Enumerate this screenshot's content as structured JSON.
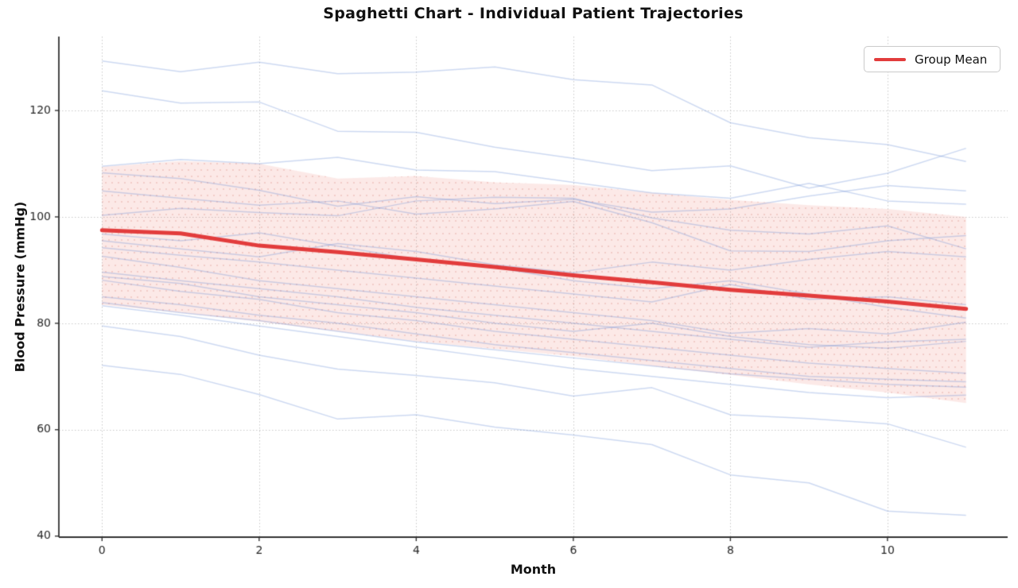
{
  "chart_data": {
    "type": "line",
    "title": "Spaghetti Chart - Individual Patient Trajectories",
    "xlabel": "Month",
    "ylabel": "Blood Pressure (mmHg)",
    "legend": [
      "Group Mean"
    ],
    "legend_position": "upper right",
    "grid": true,
    "x": [
      0,
      1,
      2,
      3,
      4,
      5,
      6,
      7,
      8,
      9,
      10,
      11
    ],
    "x_ticks": [
      0,
      2,
      4,
      6,
      8,
      10
    ],
    "y_ticks": [
      40,
      60,
      80,
      100,
      120
    ],
    "xlim": [
      -0.55,
      11.53
    ],
    "ylim": [
      39.8,
      133.9
    ],
    "mean": [
      97.5,
      96.9,
      94.6,
      93.4,
      92.0,
      90.6,
      89.0,
      87.7,
      86.3,
      85.2,
      84.1,
      82.7
    ],
    "band_upper": [
      109.4,
      110.5,
      110.0,
      107.2,
      107.7,
      106.5,
      106.0,
      104.5,
      103.2,
      102.2,
      101.5,
      100.0
    ],
    "band_lower": [
      83.5,
      82.0,
      80.3,
      78.5,
      76.6,
      75.2,
      73.8,
      72.0,
      70.3,
      68.5,
      67.0,
      65.0
    ],
    "patients": [
      [
        129.3,
        127.3,
        129.1,
        126.9,
        127.2,
        128.2,
        125.8,
        124.8,
        117.7,
        114.9,
        113.6,
        110.4
      ],
      [
        123.7,
        121.4,
        121.6,
        116.1,
        115.9,
        113.1,
        111.0,
        108.7,
        109.6,
        105.4,
        108.2,
        112.9
      ],
      [
        109.5,
        110.8,
        110.0,
        111.2,
        108.8,
        108.5,
        106.5,
        104.5,
        103.5,
        106.3,
        103.0,
        102.4
      ],
      [
        108.3,
        107.2,
        105.0,
        102.0,
        103.8,
        102.5,
        103.3,
        100.9,
        101.5,
        103.9,
        105.9,
        104.9
      ],
      [
        104.9,
        103.5,
        102.2,
        103.0,
        100.5,
        101.5,
        102.9,
        98.9,
        93.6,
        93.5,
        95.5,
        96.5
      ],
      [
        100.3,
        101.6,
        100.8,
        100.2,
        103.0,
        103.7,
        103.5,
        99.8,
        97.5,
        96.8,
        98.3,
        94.0
      ],
      [
        95.5,
        94.0,
        92.5,
        95.0,
        93.5,
        91.0,
        89.5,
        91.5,
        90.0,
        92.0,
        93.5,
        92.5
      ],
      [
        94.2,
        92.8,
        91.5,
        90.0,
        88.5,
        87.0,
        85.5,
        84.0,
        87.3,
        84.5,
        85.0,
        83.5
      ],
      [
        92.6,
        90.5,
        88.0,
        86.5,
        85.0,
        83.5,
        82.0,
        80.5,
        78.1,
        79.0,
        78.0,
        80.2
      ],
      [
        89.6,
        88.0,
        86.5,
        85.0,
        83.0,
        81.5,
        80.0,
        78.5,
        77.0,
        75.5,
        76.5,
        77.0
      ],
      [
        88.8,
        87.5,
        85.0,
        83.5,
        82.0,
        80.0,
        78.5,
        80.0,
        77.5,
        76.0,
        75.3,
        76.6
      ],
      [
        88.1,
        86.0,
        84.5,
        82.0,
        80.5,
        78.5,
        77.0,
        75.5,
        74.0,
        72.5,
        71.5,
        70.6
      ],
      [
        85.0,
        83.5,
        81.5,
        80.0,
        78.0,
        76.0,
        74.5,
        73.0,
        71.5,
        70.0,
        69.5,
        69.0
      ],
      [
        83.9,
        82.0,
        80.5,
        78.5,
        76.5,
        75.0,
        73.5,
        72.0,
        70.5,
        69.5,
        68.5,
        68.0
      ],
      [
        83.3,
        81.5,
        79.5,
        77.5,
        75.5,
        73.5,
        71.5,
        70.0,
        68.5,
        67.0,
        66.0,
        66.5
      ],
      [
        96.8,
        95.5,
        97.0,
        94.5,
        92.0,
        90.5,
        88.0,
        86.5,
        88.0,
        85.5,
        83.0,
        81.0
      ],
      [
        79.5,
        77.5,
        74.0,
        71.4,
        70.2,
        68.8,
        66.3,
        67.9,
        62.8,
        62.1,
        61.1,
        56.7
      ],
      [
        72.1,
        70.4,
        66.6,
        62.0,
        62.8,
        60.5,
        59.0,
        57.2,
        51.5,
        50.0,
        44.7,
        43.9
      ]
    ],
    "colors": {
      "mean": "#e23c3c",
      "patient": "rgba(90,130,210,0.30)",
      "band_fill": "rgba(236,110,95,0.15)",
      "band_dots": "rgba(215,125,115,0.40)",
      "grid": "#c9c9c9",
      "spine": "#333333",
      "tick_text": "#262626"
    }
  }
}
